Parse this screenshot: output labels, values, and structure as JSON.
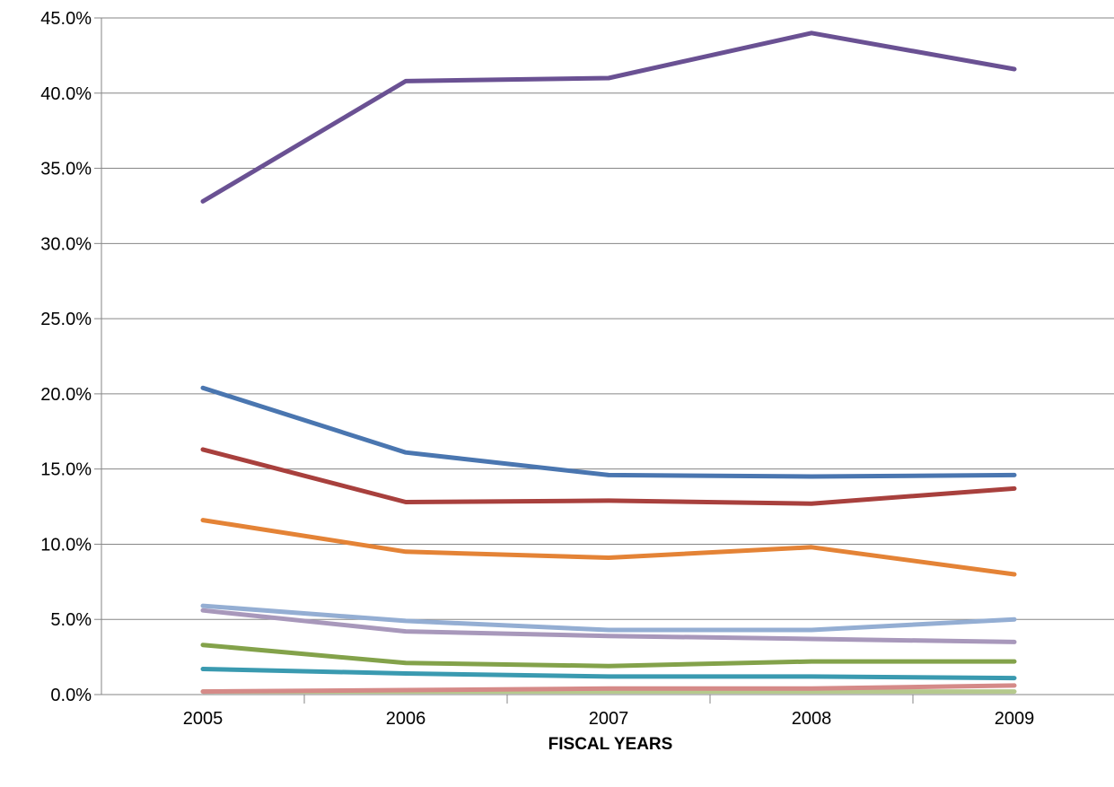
{
  "chart_data": {
    "type": "line",
    "title": "",
    "xlabel": "FISCAL YEARS",
    "ylabel": "",
    "x": [
      "2005",
      "2006",
      "2007",
      "2008",
      "2009"
    ],
    "ylim": [
      0,
      45
    ],
    "yticks": [
      "0.0%",
      "5.0%",
      "10.0%",
      "15.0%",
      "20.0%",
      "25.0%",
      "30.0%",
      "35.0%",
      "40.0%",
      "45.0%"
    ],
    "y_unit": "%",
    "grid": true,
    "legend": "none",
    "series": [
      {
        "color": "#6a5193",
        "values": [
          32.8,
          40.8,
          41.0,
          44.0,
          41.6
        ]
      },
      {
        "color": "#4a76b0",
        "values": [
          20.4,
          16.1,
          14.6,
          14.5,
          14.6
        ]
      },
      {
        "color": "#a8403d",
        "values": [
          16.3,
          12.8,
          12.9,
          12.7,
          13.7
        ]
      },
      {
        "color": "#e48336",
        "values": [
          11.6,
          9.5,
          9.1,
          9.8,
          8.0
        ]
      },
      {
        "color": "#94aed3",
        "values": [
          5.9,
          4.9,
          4.3,
          4.3,
          5.0
        ]
      },
      {
        "color": "#a898bb",
        "values": [
          5.6,
          4.2,
          3.9,
          3.7,
          3.5
        ]
      },
      {
        "color": "#83a24a",
        "values": [
          3.3,
          2.1,
          1.9,
          2.2,
          2.2
        ]
      },
      {
        "color": "#3a9ab0",
        "values": [
          1.7,
          1.4,
          1.2,
          1.2,
          1.1
        ]
      },
      {
        "color": "#d58a88",
        "values": [
          0.2,
          0.3,
          0.4,
          0.4,
          0.6
        ]
      },
      {
        "color": "#b5c98d",
        "values": [
          0.2,
          0.2,
          0.2,
          0.2,
          0.2
        ]
      }
    ]
  }
}
